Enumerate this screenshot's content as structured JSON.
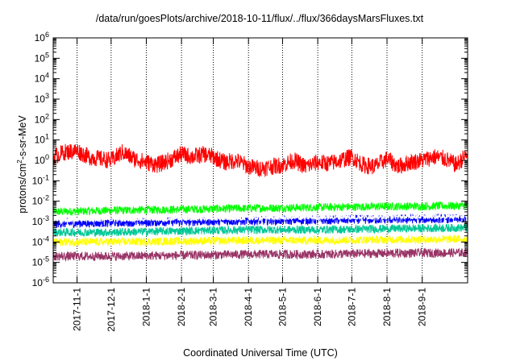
{
  "chart_data": {
    "type": "line",
    "title": "/data/run/goesPlots/archive/2018-10-11/flux/../flux/366daysMarsFluxes.txt",
    "xlabel": "Coordinated Universal Time (UTC)",
    "ylabel": {
      "base": "protons/cm",
      "exp": "2",
      "rest": "-s-sr-MeV"
    },
    "y_scale": "log",
    "ylim": [
      1e-06,
      1000000.0
    ],
    "xlim": [
      "2017-10-11",
      "2018-10-11"
    ],
    "x_tick_labels": [
      "2017-11-1",
      "2017-12-1",
      "2018-1-1",
      "2018-2-1",
      "2018-3-1",
      "2018-4-1",
      "2018-5-1",
      "2018-6-1",
      "2018-7-1",
      "2018-8-1",
      "2018-9-1"
    ],
    "x_tick_dates": [
      "2017-11-01",
      "2017-12-01",
      "2018-01-01",
      "2018-02-01",
      "2018-03-01",
      "2018-04-01",
      "2018-05-01",
      "2018-06-01",
      "2018-07-01",
      "2018-08-01",
      "2018-09-01"
    ],
    "y_tick_exponents": [
      -6,
      -5,
      -4,
      -3,
      -2,
      -1,
      0,
      1,
      2,
      3,
      4,
      5,
      6
    ],
    "grid": true,
    "legend": "none",
    "series": [
      {
        "color": "#ff0000",
        "x": [
          "2017-10-11",
          "2017-10-21",
          "2017-11-01",
          "2017-11-11",
          "2017-11-21",
          "2017-12-01",
          "2017-12-11",
          "2017-12-21",
          "2018-01-01",
          "2018-01-11",
          "2018-01-21",
          "2018-02-01",
          "2018-02-11",
          "2018-02-21",
          "2018-03-01",
          "2018-03-11",
          "2018-03-21",
          "2018-04-01",
          "2018-04-11",
          "2018-04-21",
          "2018-05-01",
          "2018-05-11",
          "2018-05-21",
          "2018-06-01",
          "2018-06-11",
          "2018-06-21",
          "2018-07-01",
          "2018-07-11",
          "2018-07-21",
          "2018-08-01",
          "2018-08-11",
          "2018-08-21",
          "2018-09-01",
          "2018-09-11",
          "2018-09-21",
          "2018-10-01",
          "2018-10-11"
        ],
        "y": [
          1.5,
          2.5,
          3.0,
          1.5,
          1.2,
          1.0,
          2.5,
          1.2,
          0.8,
          0.6,
          1.0,
          2.0,
          1.5,
          2.0,
          1.5,
          0.8,
          1.0,
          0.5,
          0.4,
          0.5,
          0.6,
          1.0,
          0.5,
          0.8,
          0.7,
          1.0,
          1.5,
          0.6,
          0.5,
          1.2,
          0.5,
          0.8,
          1.0,
          1.5,
          1.2,
          0.6,
          2.0
        ]
      },
      {
        "color": "#00ff00",
        "x": [
          "2017-10-11",
          "2017-12-01",
          "2018-02-01",
          "2018-04-01",
          "2018-06-01",
          "2018-08-01",
          "2018-10-11"
        ],
        "y": [
          0.003,
          0.0035,
          0.004,
          0.0045,
          0.005,
          0.0055,
          0.006
        ]
      },
      {
        "color": "#0000ff",
        "x": [
          "2017-10-11",
          "2017-12-01",
          "2018-02-01",
          "2018-04-01",
          "2018-06-01",
          "2018-08-01",
          "2018-10-11"
        ],
        "y": [
          0.0008,
          0.0009,
          0.001,
          0.0011,
          0.0012,
          0.0013,
          0.0014
        ]
      },
      {
        "color": "#ffffff",
        "x": [
          "2017-10-11",
          "2017-12-01",
          "2018-02-01",
          "2018-04-01",
          "2018-06-01",
          "2018-08-01",
          "2018-10-11"
        ],
        "y": [
          0.0012,
          0.0013,
          0.0014,
          0.0015,
          0.0016,
          0.0017,
          0.0018
        ]
      },
      {
        "color": "#00c896",
        "x": [
          "2017-10-11",
          "2017-12-01",
          "2018-02-01",
          "2018-04-01",
          "2018-06-01",
          "2018-08-01",
          "2018-10-11"
        ],
        "y": [
          0.0003,
          0.0003,
          0.00035,
          0.0004,
          0.0004,
          0.00045,
          0.0005
        ]
      },
      {
        "color": "#ffff00",
        "x": [
          "2017-10-11",
          "2017-12-01",
          "2018-02-01",
          "2018-04-01",
          "2018-06-01",
          "2018-08-01",
          "2018-10-11"
        ],
        "y": [
          0.0001,
          0.0001,
          0.00011,
          0.00012,
          0.00012,
          0.00013,
          0.00014
        ]
      },
      {
        "color": "#993366",
        "x": [
          "2017-10-11",
          "2017-12-01",
          "2018-02-01",
          "2018-04-01",
          "2018-06-01",
          "2018-08-01",
          "2018-10-11"
        ],
        "y": [
          2e-05,
          2e-05,
          2.2e-05,
          2.5e-05,
          2.5e-05,
          2.8e-05,
          3e-05
        ]
      }
    ]
  }
}
